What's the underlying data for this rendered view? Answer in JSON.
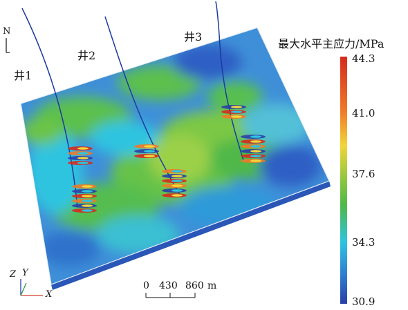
{
  "colorbar": {
    "title": "最大水平主应力/MPa",
    "ticks": [
      "44.3",
      "41.0",
      "37.6",
      "34.3",
      "30.9"
    ],
    "colors": [
      "#d62a1e",
      "#f2d53a",
      "#4fb848",
      "#2ec4e0",
      "#2a3fa8"
    ]
  },
  "wells": [
    {
      "label": "井1"
    },
    {
      "label": "井2"
    },
    {
      "label": "井3"
    }
  ],
  "north_label": "N",
  "axes": {
    "z": "Z",
    "y": "Y",
    "x": "X"
  },
  "scale_bar": {
    "ticks": [
      "0",
      "430",
      "860"
    ],
    "unit": "m"
  },
  "colors": {
    "background_field": "#3a8fd6",
    "well_line": "#1b3aa0"
  }
}
